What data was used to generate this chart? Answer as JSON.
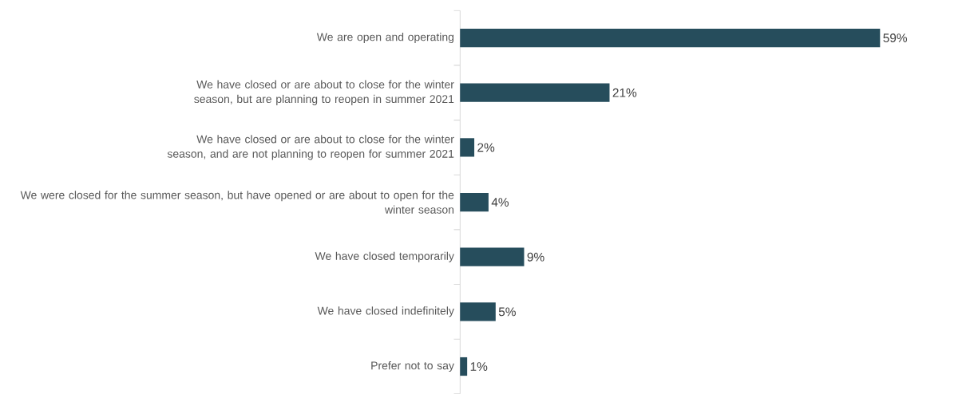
{
  "chart_data": {
    "type": "bar",
    "orientation": "horizontal",
    "categories": [
      "We are open and operating",
      "We have closed or are about to close for the winter season, but are planning to reopen in summer 2021",
      "We have closed or are about to close for the winter season, and are not planning to reopen for summer 2021",
      "We were closed for the summer season, but have opened or are about to open for the winter season",
      "We have closed temporarily",
      "We have closed indefinitely",
      "Prefer not to say"
    ],
    "values": [
      59,
      21,
      2,
      4,
      9,
      5,
      1
    ],
    "value_labels": [
      "59%",
      "21%",
      "2%",
      "4%",
      "9%",
      "5%",
      "1%"
    ],
    "color": "#264d5c"
  }
}
